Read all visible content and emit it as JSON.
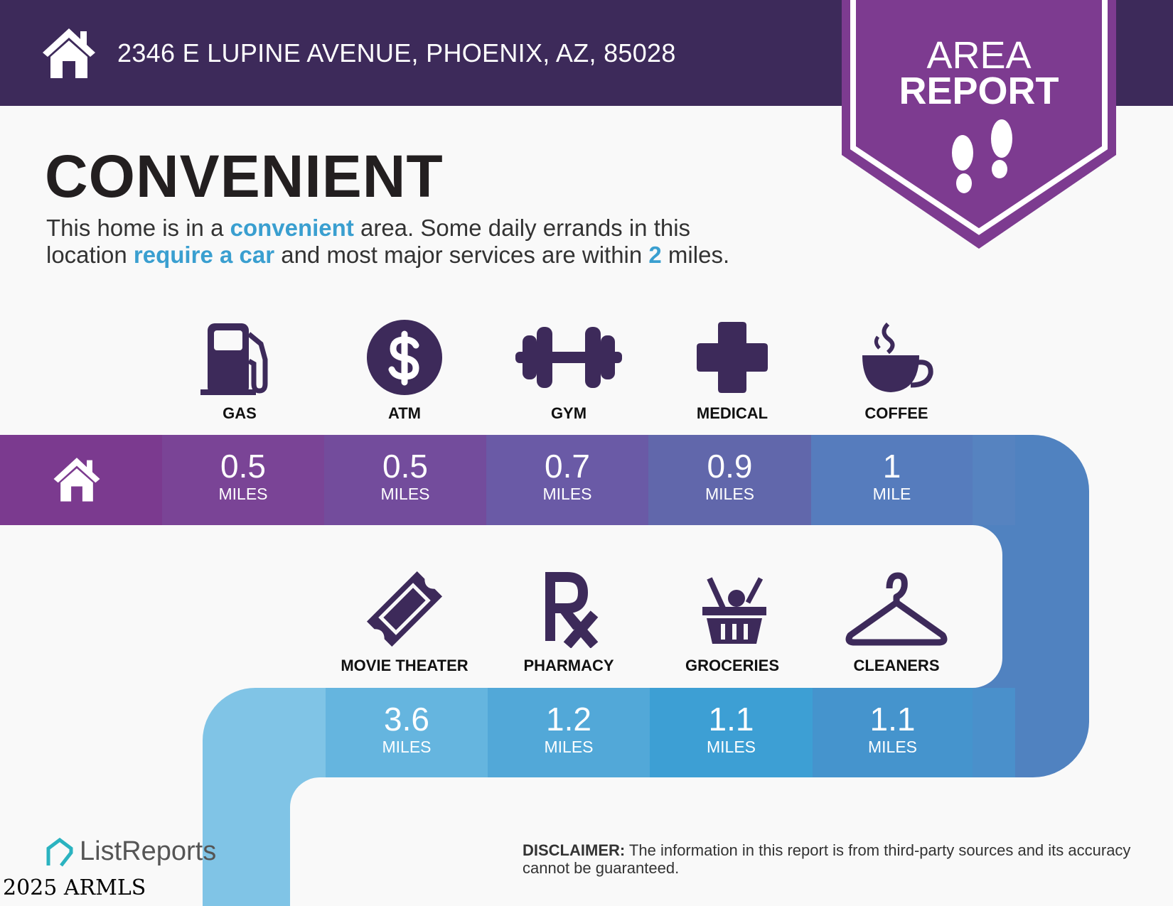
{
  "header": {
    "address": "2346 E LUPINE AVENUE, PHOENIX, AZ, 85028",
    "badge_line1": "AREA",
    "badge_line2": "REPORT",
    "bg_color": "#3d2a5a",
    "badge_color": "#7d3b90"
  },
  "main": {
    "title": "CONVENIENT",
    "summary": {
      "p1": "This home is in a ",
      "h1": "convenient",
      "p2": " area. Some daily errands in this",
      "p3": "location ",
      "h2": "require a car",
      "p4": " and most major services are within ",
      "h3": "2",
      "p5": " miles."
    }
  },
  "row1": [
    {
      "label": "GAS",
      "value": "0.5",
      "unit": "MILES",
      "icon": "gas-pump-icon",
      "color": "#7a4496"
    },
    {
      "label": "ATM",
      "value": "0.5",
      "unit": "MILES",
      "icon": "dollar-icon",
      "color": "#734c9c"
    },
    {
      "label": "GYM",
      "value": "0.7",
      "unit": "MILES",
      "icon": "dumbbell-icon",
      "color": "#6a5aa6"
    },
    {
      "label": "MEDICAL",
      "value": "0.9",
      "unit": "MILES",
      "icon": "medical-cross-icon",
      "color": "#6167ab"
    },
    {
      "label": "COFFEE",
      "value": "1",
      "unit": "MILE",
      "icon": "coffee-cup-icon",
      "color": "#567cbd"
    }
  ],
  "row2": [
    {
      "label": "MOVIE THEATER",
      "value": "3.6",
      "unit": "MILES",
      "icon": "ticket-icon",
      "color": "#65b5df"
    },
    {
      "label": "PHARMACY",
      "value": "1.2",
      "unit": "MILES",
      "icon": "rx-icon",
      "color": "#52a8d8"
    },
    {
      "label": "GROCERIES",
      "value": "1.1",
      "unit": "MILES",
      "icon": "grocery-basket-icon",
      "color": "#3d9fd4"
    },
    {
      "label": "CLEANERS",
      "value": "1.1",
      "unit": "MILES",
      "icon": "hanger-icon",
      "color": "#4594cd"
    }
  ],
  "footer": {
    "disclaimer_label": "DISCLAIMER:",
    "disclaimer_text": " The information in this report is from third-party sources and its accuracy cannot be guaranteed.",
    "logo": "ListReports",
    "watermark": "2025 ARMLS"
  }
}
